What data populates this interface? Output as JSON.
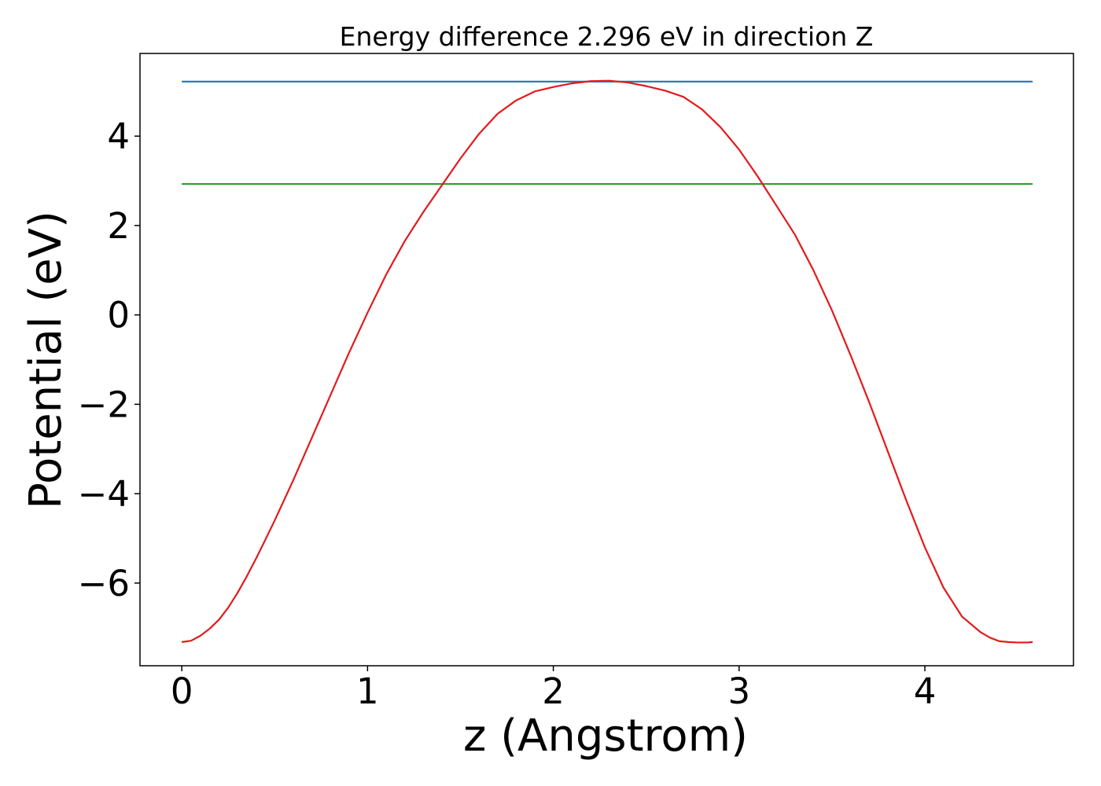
{
  "chart_data": {
    "type": "line",
    "title": "Energy difference 2.296 eV in direction Z",
    "xlabel": "z (Angstrom)",
    "ylabel": "Potential (eV)",
    "xlim": [
      -0.225,
      4.8
    ],
    "ylim": [
      -7.85,
      5.85
    ],
    "xticks": [
      0,
      1,
      2,
      3,
      4
    ],
    "xtick_labels": [
      "0",
      "1",
      "2",
      "3",
      "4"
    ],
    "yticks": [
      -6,
      -4,
      -2,
      0,
      2,
      4
    ],
    "ytick_labels": [
      "−6",
      "−4",
      "−2",
      "0",
      "2",
      "4"
    ],
    "grid": false,
    "legend": "none",
    "series": [
      {
        "color": "#1f77b4",
        "x": [
          0,
          4.58
        ],
        "y": [
          5.22,
          5.22
        ]
      },
      {
        "color": "#2ca02c",
        "x": [
          0,
          4.58
        ],
        "y": [
          2.93,
          2.93
        ]
      },
      {
        "color": "#e31a1c",
        "x": [
          0,
          0.05,
          0.1,
          0.15,
          0.2,
          0.25,
          0.3,
          0.35,
          0.4,
          0.45,
          0.5,
          0.6,
          0.7,
          0.8,
          0.9,
          1.0,
          1.1,
          1.2,
          1.3,
          1.4,
          1.5,
          1.6,
          1.7,
          1.8,
          1.9,
          2.0,
          2.1,
          2.2,
          2.3,
          2.4,
          2.5,
          2.6,
          2.7,
          2.8,
          2.9,
          3.0,
          3.1,
          3.2,
          3.3,
          3.4,
          3.5,
          3.6,
          3.7,
          3.8,
          3.9,
          4.0,
          4.1,
          4.2,
          4.3,
          4.35,
          4.4,
          4.45,
          4.5,
          4.55,
          4.58
        ],
        "y": [
          -7.32,
          -7.29,
          -7.18,
          -7.02,
          -6.82,
          -6.55,
          -6.22,
          -5.85,
          -5.45,
          -5.03,
          -4.6,
          -3.7,
          -2.75,
          -1.8,
          -0.85,
          0.05,
          0.9,
          1.65,
          2.3,
          2.9,
          3.5,
          4.05,
          4.5,
          4.8,
          5.0,
          5.1,
          5.18,
          5.23,
          5.24,
          5.2,
          5.12,
          5.02,
          4.88,
          4.6,
          4.2,
          3.7,
          3.1,
          2.45,
          1.8,
          1.0,
          0.1,
          -0.9,
          -1.95,
          -3.05,
          -4.15,
          -5.2,
          -6.1,
          -6.75,
          -7.1,
          -7.22,
          -7.3,
          -7.32,
          -7.33,
          -7.33,
          -7.32
        ]
      }
    ]
  }
}
